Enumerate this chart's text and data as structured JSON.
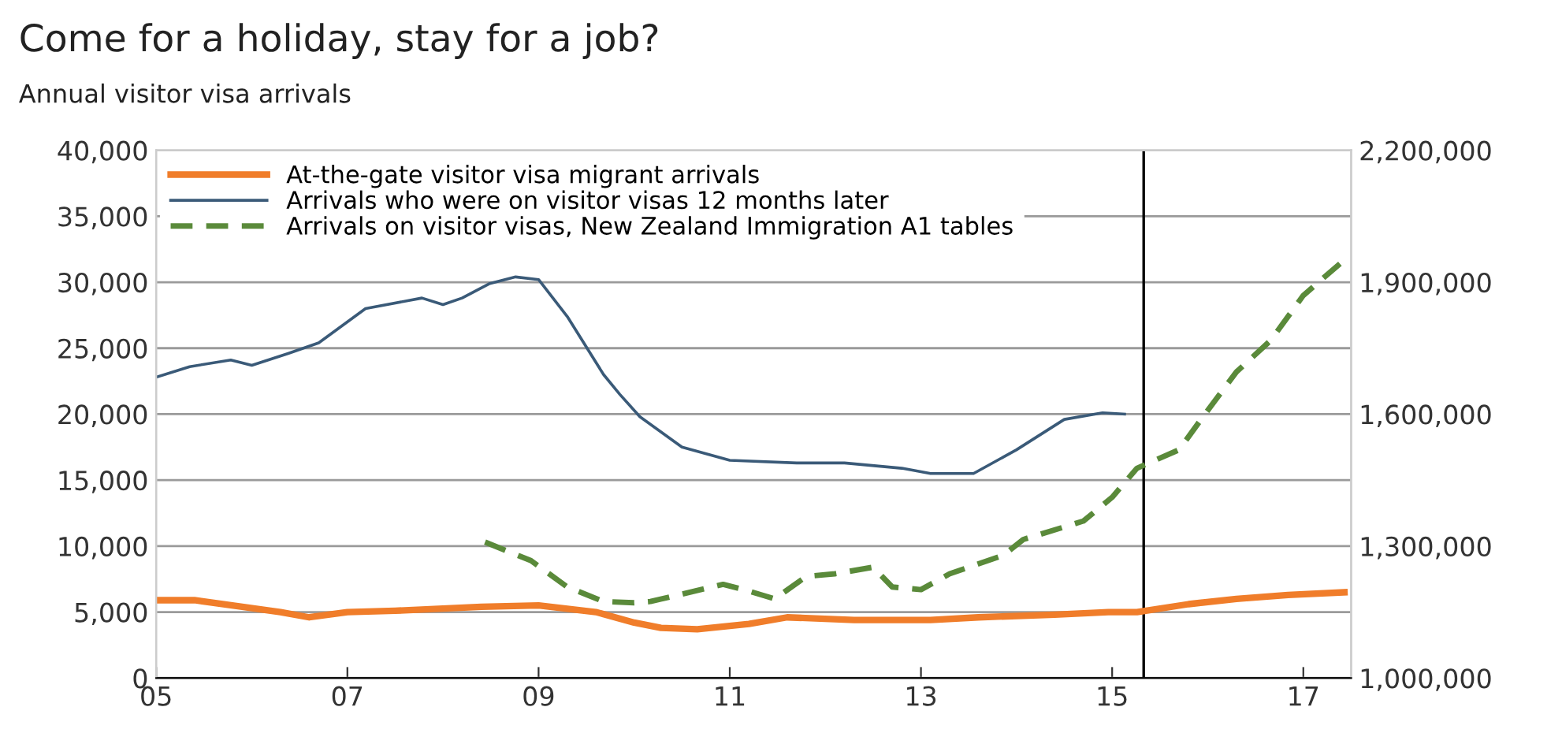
{
  "chart_data": {
    "type": "line",
    "title": "Come for a holiday, stay for a job?",
    "subtitle": "Annual visitor visa arrivals",
    "xlim": [
      2005,
      2017.5
    ],
    "xticks": [
      {
        "value": 2005,
        "label": "05"
      },
      {
        "value": 2007,
        "label": "07"
      },
      {
        "value": 2009,
        "label": "09"
      },
      {
        "value": 2011,
        "label": "11"
      },
      {
        "value": 2013,
        "label": "13"
      },
      {
        "value": 2015,
        "label": "15"
      },
      {
        "value": 2017,
        "label": "17"
      }
    ],
    "ylim": [
      0,
      40000
    ],
    "yticks": [
      {
        "value": 0,
        "label": "0"
      },
      {
        "value": 5000,
        "label": "5,000"
      },
      {
        "value": 10000,
        "label": "10,000"
      },
      {
        "value": 15000,
        "label": "15,000"
      },
      {
        "value": 20000,
        "label": "20,000"
      },
      {
        "value": 25000,
        "label": "25,000"
      },
      {
        "value": 30000,
        "label": "30,000"
      },
      {
        "value": 35000,
        "label": "35,000"
      },
      {
        "value": 40000,
        "label": "40,000"
      }
    ],
    "y2lim": [
      1000000,
      2200000
    ],
    "y2ticks": [
      {
        "value": 1000000,
        "label": "1,000,000"
      },
      {
        "value": 1300000,
        "label": "1,300,000"
      },
      {
        "value": 1600000,
        "label": "1,600,000"
      },
      {
        "value": 1900000,
        "label": "1,900,000"
      },
      {
        "value": 2200000,
        "label": "2,200,000"
      }
    ],
    "grid": "y",
    "legend": "top left",
    "ref_lines": [
      {
        "axis": "x",
        "value": 2015.33,
        "color": "#000000"
      }
    ],
    "series": [
      {
        "name": "At-the-gate visitor visa migrant arrivals",
        "color": "#f07d2a",
        "line_style": "solid",
        "x": [
          2005,
          2005.4,
          2005.9,
          2006.3,
          2006.6,
          2007,
          2007.5,
          2008.4,
          2009.0,
          2009.6,
          2010.0,
          2010.28,
          2010.66,
          2011.2,
          2011.6,
          2012.3,
          2013.1,
          2013.6,
          2014.4,
          2014.96,
          2015.26,
          2015.8,
          2016.3,
          2016.84,
          2017.43
        ],
        "values": [
          5900,
          5900,
          5400,
          5000,
          4600,
          5000,
          5100,
          5400,
          5500,
          5000,
          4200,
          3800,
          3700,
          4100,
          4600,
          4400,
          4400,
          4600,
          4800,
          5000,
          5000,
          5600,
          6000,
          6300,
          6500
        ]
      },
      {
        "name": "Arrivals who were on visitor visas 12 months later",
        "color": "#3a5a78",
        "line_style": "solid",
        "x": [
          2005,
          2005.35,
          2005.78,
          2006.0,
          2006.38,
          2006.7,
          2007.19,
          2007.78,
          2008.0,
          2008.2,
          2008.49,
          2008.76,
          2009.0,
          2009.3,
          2009.68,
          2009.85,
          2010.06,
          2010.5,
          2011.0,
          2011.7,
          2012.2,
          2012.8,
          2013.1,
          2013.55,
          2014.0,
          2014.5,
          2014.9,
          2015.13
        ],
        "values": [
          22800,
          23600,
          24100,
          23700,
          24600,
          25400,
          28000,
          28800,
          28300,
          28800,
          29900,
          30400,
          30200,
          27400,
          23000,
          21500,
          19800,
          17500,
          16500,
          16300,
          16300,
          15900,
          15500,
          15500,
          17300,
          19600,
          20100,
          20000
        ]
      },
      {
        "name": "Arrivals on visitor visas, New Zealand Immigration A1 tables",
        "color": "#5a8a3a",
        "line_style": "dashed",
        "axis": "y2",
        "x": [
          2008.44,
          2008.92,
          2009.3,
          2009.68,
          2010.0,
          2010.17,
          2010.93,
          2011.15,
          2011.47,
          2011.8,
          2012.1,
          2012.5,
          2012.7,
          2013.0,
          2013.3,
          2013.86,
          2014.07,
          2014.7,
          2015.0,
          2015.26,
          2015.7,
          2015.95,
          2016.3,
          2016.66,
          2017.0,
          2017.43
        ],
        "values": [
          1309000,
          1267000,
          1207000,
          1174000,
          1171000,
          1174000,
          1213000,
          1201000,
          1180000,
          1231000,
          1237000,
          1252000,
          1207000,
          1201000,
          1237000,
          1279000,
          1315000,
          1357000,
          1411000,
          1477000,
          1519000,
          1594000,
          1696000,
          1768000,
          1870000,
          1951000
        ]
      }
    ]
  }
}
